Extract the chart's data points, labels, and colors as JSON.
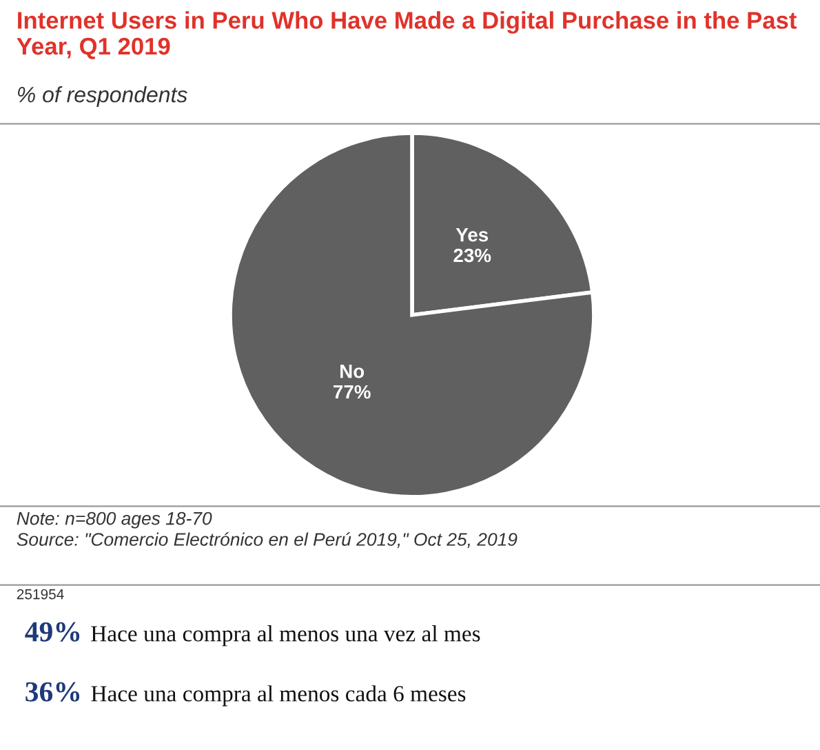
{
  "chart_data": {
    "type": "pie",
    "title": "Internet Users in Peru Who Have Made a Digital Purchase in the Past Year, Q1 2019",
    "subtitle": "% of respondents",
    "categories": [
      "Yes",
      "No"
    ],
    "values": [
      23,
      77
    ],
    "value_labels": [
      "23%",
      "77%"
    ],
    "colors": [
      "#606060",
      "#606060"
    ],
    "annotations": [
      "Note: n=800 ages 18-70",
      "Source: \"Comercio Electrónico en el Perú 2019,\" Oct 25, 2019",
      "251954",
      "49% Hace una compra al menos una vez al mes",
      "36% Hace una compra al menos cada 6 meses"
    ]
  }
}
